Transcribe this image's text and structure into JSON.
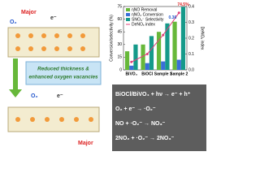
{
  "chart_data": {
    "type": "bar",
    "categories": [
      "BiVO₄",
      "BiOCl",
      "Sample 1",
      "Sample 2"
    ],
    "y_label": "Conversion/selectivity (%)",
    "y2_label": "DeNOₓ index",
    "ylim": [
      0,
      75
    ],
    "yticks": [
      0,
      15,
      30,
      45,
      60,
      75
    ],
    "y2lim": [
      0,
      0.4
    ],
    "y2ticks": [
      {
        "value": 0,
        "label": "0.0"
      },
      0.1,
      0.2,
      0.3,
      0.4
    ],
    "legend": "upper left",
    "series": [
      {
        "name": "ηNO Removal",
        "color": "#67b83a",
        "values": [
          22,
          30,
          45,
          57
        ]
      },
      {
        "name": "ηNO₂ Conversion",
        "color": "#3a6fd8",
        "values": [
          5,
          8,
          10,
          12
        ]
      },
      {
        "name": "SNO₃⁻ Selectivity",
        "color": "#159a8a",
        "values": [
          30,
          40,
          55,
          74.5
        ],
        "value_labels": [
          null,
          null,
          null,
          "74.5%"
        ]
      },
      {
        "name": "DeNOₓ index",
        "type": "line",
        "axis": "y2",
        "color": "#e0407a",
        "values": [
          0.05,
          0.1,
          0.22,
          0.36
        ],
        "value_labels": [
          null,
          null,
          null,
          "0.36"
        ]
      }
    ]
  },
  "diagram": {
    "top_labels": [
      "Major",
      "O₂",
      "e⁻"
    ],
    "banner": [
      "Reduced thickness &",
      "enhanced oxygen vacancies"
    ],
    "bottom_labels": [
      "O₂",
      "e⁻",
      "Major"
    ]
  },
  "equations": [
    "BiOCl/BiVO₄ + hν → e⁻ + h⁺",
    "O₂ + e⁻ → ·O₂⁻",
    "NO + ·O₂⁻ → NO₃⁻",
    "2NO₂ + ·O₂⁻ → 2NO₃⁻"
  ]
}
